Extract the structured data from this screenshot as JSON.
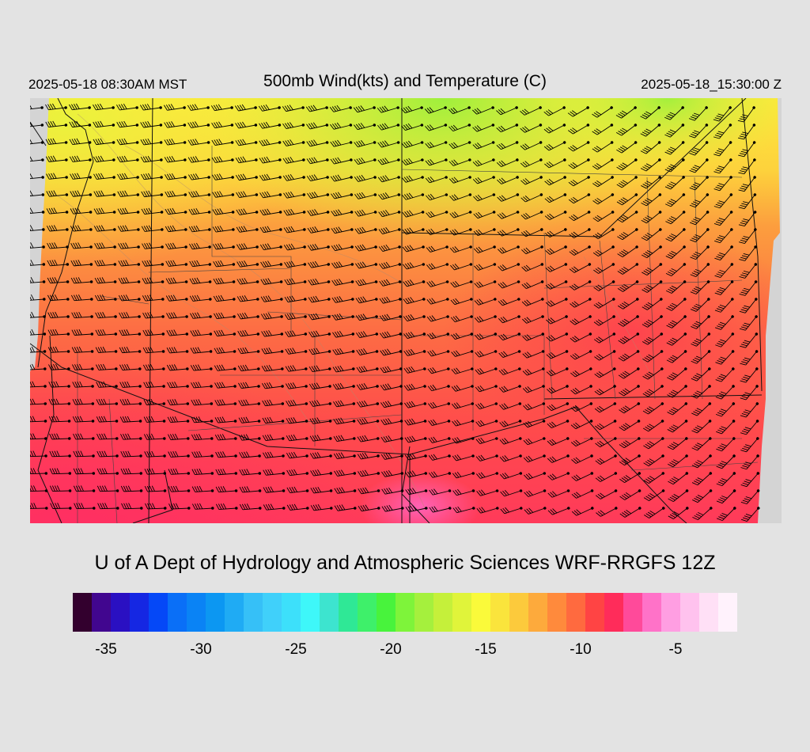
{
  "header": {
    "valid_local": "2025-05-18 08:30AM MST",
    "title": "500mb Wind(kts) and Temperature (C)",
    "valid_utc": "2025-05-18_15:30:00 Z"
  },
  "footer": {
    "credit": "U of A Dept of Hydrology and Atmospheric Sciences WRF-RRGFS 12Z"
  },
  "legend": {
    "colors": [
      "#33002e",
      "#41068f",
      "#2a10c2",
      "#1527e3",
      "#0548f7",
      "#0a6ff7",
      "#0a83f5",
      "#0c97f2",
      "#1fabf4",
      "#36c0f7",
      "#40d0fa",
      "#3de0fa",
      "#3ef7f9",
      "#3de4cf",
      "#2fe896",
      "#3ef06a",
      "#48f33c",
      "#7ef43a",
      "#a5f03d",
      "#c5f03a",
      "#e0f43a",
      "#fafa3a",
      "#fae43c",
      "#fcca3c",
      "#fdaa3c",
      "#ff8a3c",
      "#ff6a3f",
      "#ff4444",
      "#ff2c5a",
      "#ff4a9a",
      "#ff72c8",
      "#ff9ee2",
      "#ffc2ee",
      "#ffe0f6",
      "#fff2fc"
    ],
    "ticks": [
      "-35",
      "-30",
      "-25",
      "-20",
      "-15",
      "-10",
      "-5"
    ],
    "tick_values": [
      -35,
      -30,
      -25,
      -20,
      -15,
      -10,
      -5
    ],
    "range": [
      -37,
      -2
    ]
  },
  "map": {
    "field": "500mb temperature (C)",
    "overlay": "wind barbs (kts)",
    "temperature_gradient_note": "coldest (-16 to -17) in north, warmest (-7 to -9) in south and east"
  }
}
